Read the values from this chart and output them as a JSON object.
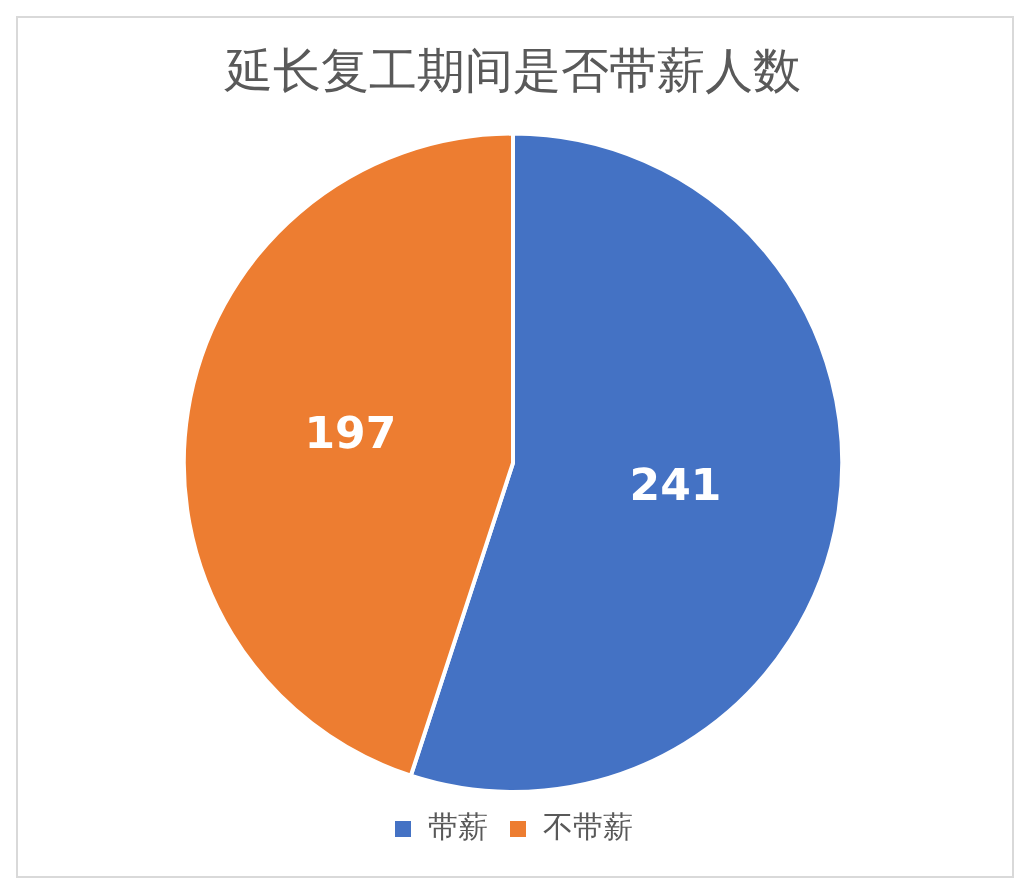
{
  "chart_data": {
    "type": "pie",
    "title": "延长复工期间是否带薪人数",
    "categories": [
      "带薪",
      "不带薪"
    ],
    "values": [
      241,
      197
    ],
    "colors": [
      "#4472c4",
      "#ed7d31"
    ],
    "data_labels": true,
    "legend": "bottom"
  }
}
